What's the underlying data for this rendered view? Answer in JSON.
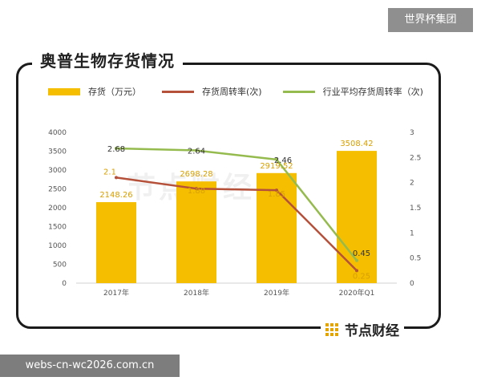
{
  "watermark_top": "世界杯集团",
  "watermark_bottom": "webs-cn-wc2026.com.cn",
  "chart_watermark": "节点财经",
  "brand": {
    "text": "节点财经"
  },
  "colors": {
    "inventory": "#f5bf00",
    "turnover": "#b5503a",
    "industry": "#95bb4e"
  },
  "chart_data": {
    "type": "bar",
    "title": "奥普生物存货情况",
    "categories": [
      "2017年",
      "2018年",
      "2019年",
      "2020年Q1"
    ],
    "y_left": {
      "ticks": [
        "0",
        "500",
        "1000",
        "1500",
        "2000",
        "2500",
        "3000",
        "3500",
        "4000"
      ],
      "range": [
        0,
        4000
      ]
    },
    "y_right": {
      "ticks": [
        "0",
        "0.5",
        "1",
        "1.5",
        "2",
        "2.5",
        "3"
      ],
      "range": [
        0,
        3
      ]
    },
    "series": [
      {
        "name": "存货（万元）",
        "kind": "bar",
        "axis": "left",
        "values": [
          2148.26,
          2698.28,
          2919.52,
          3508.42
        ],
        "labels": [
          "2148.26",
          "2698.28",
          "2919.52",
          "3508.42"
        ]
      },
      {
        "name": "存货周转率(次)",
        "kind": "line",
        "axis": "right",
        "values": [
          2.1,
          1.88,
          1.85,
          0.25
        ],
        "labels": [
          "2.1",
          "1.88",
          "1.85",
          "0.25"
        ]
      },
      {
        "name": "行业平均存货周转率（次)",
        "kind": "line",
        "axis": "right",
        "values": [
          2.68,
          2.64,
          2.46,
          0.45
        ],
        "labels": [
          "2.68",
          "2.64",
          "2.46",
          "0.45"
        ]
      }
    ]
  }
}
